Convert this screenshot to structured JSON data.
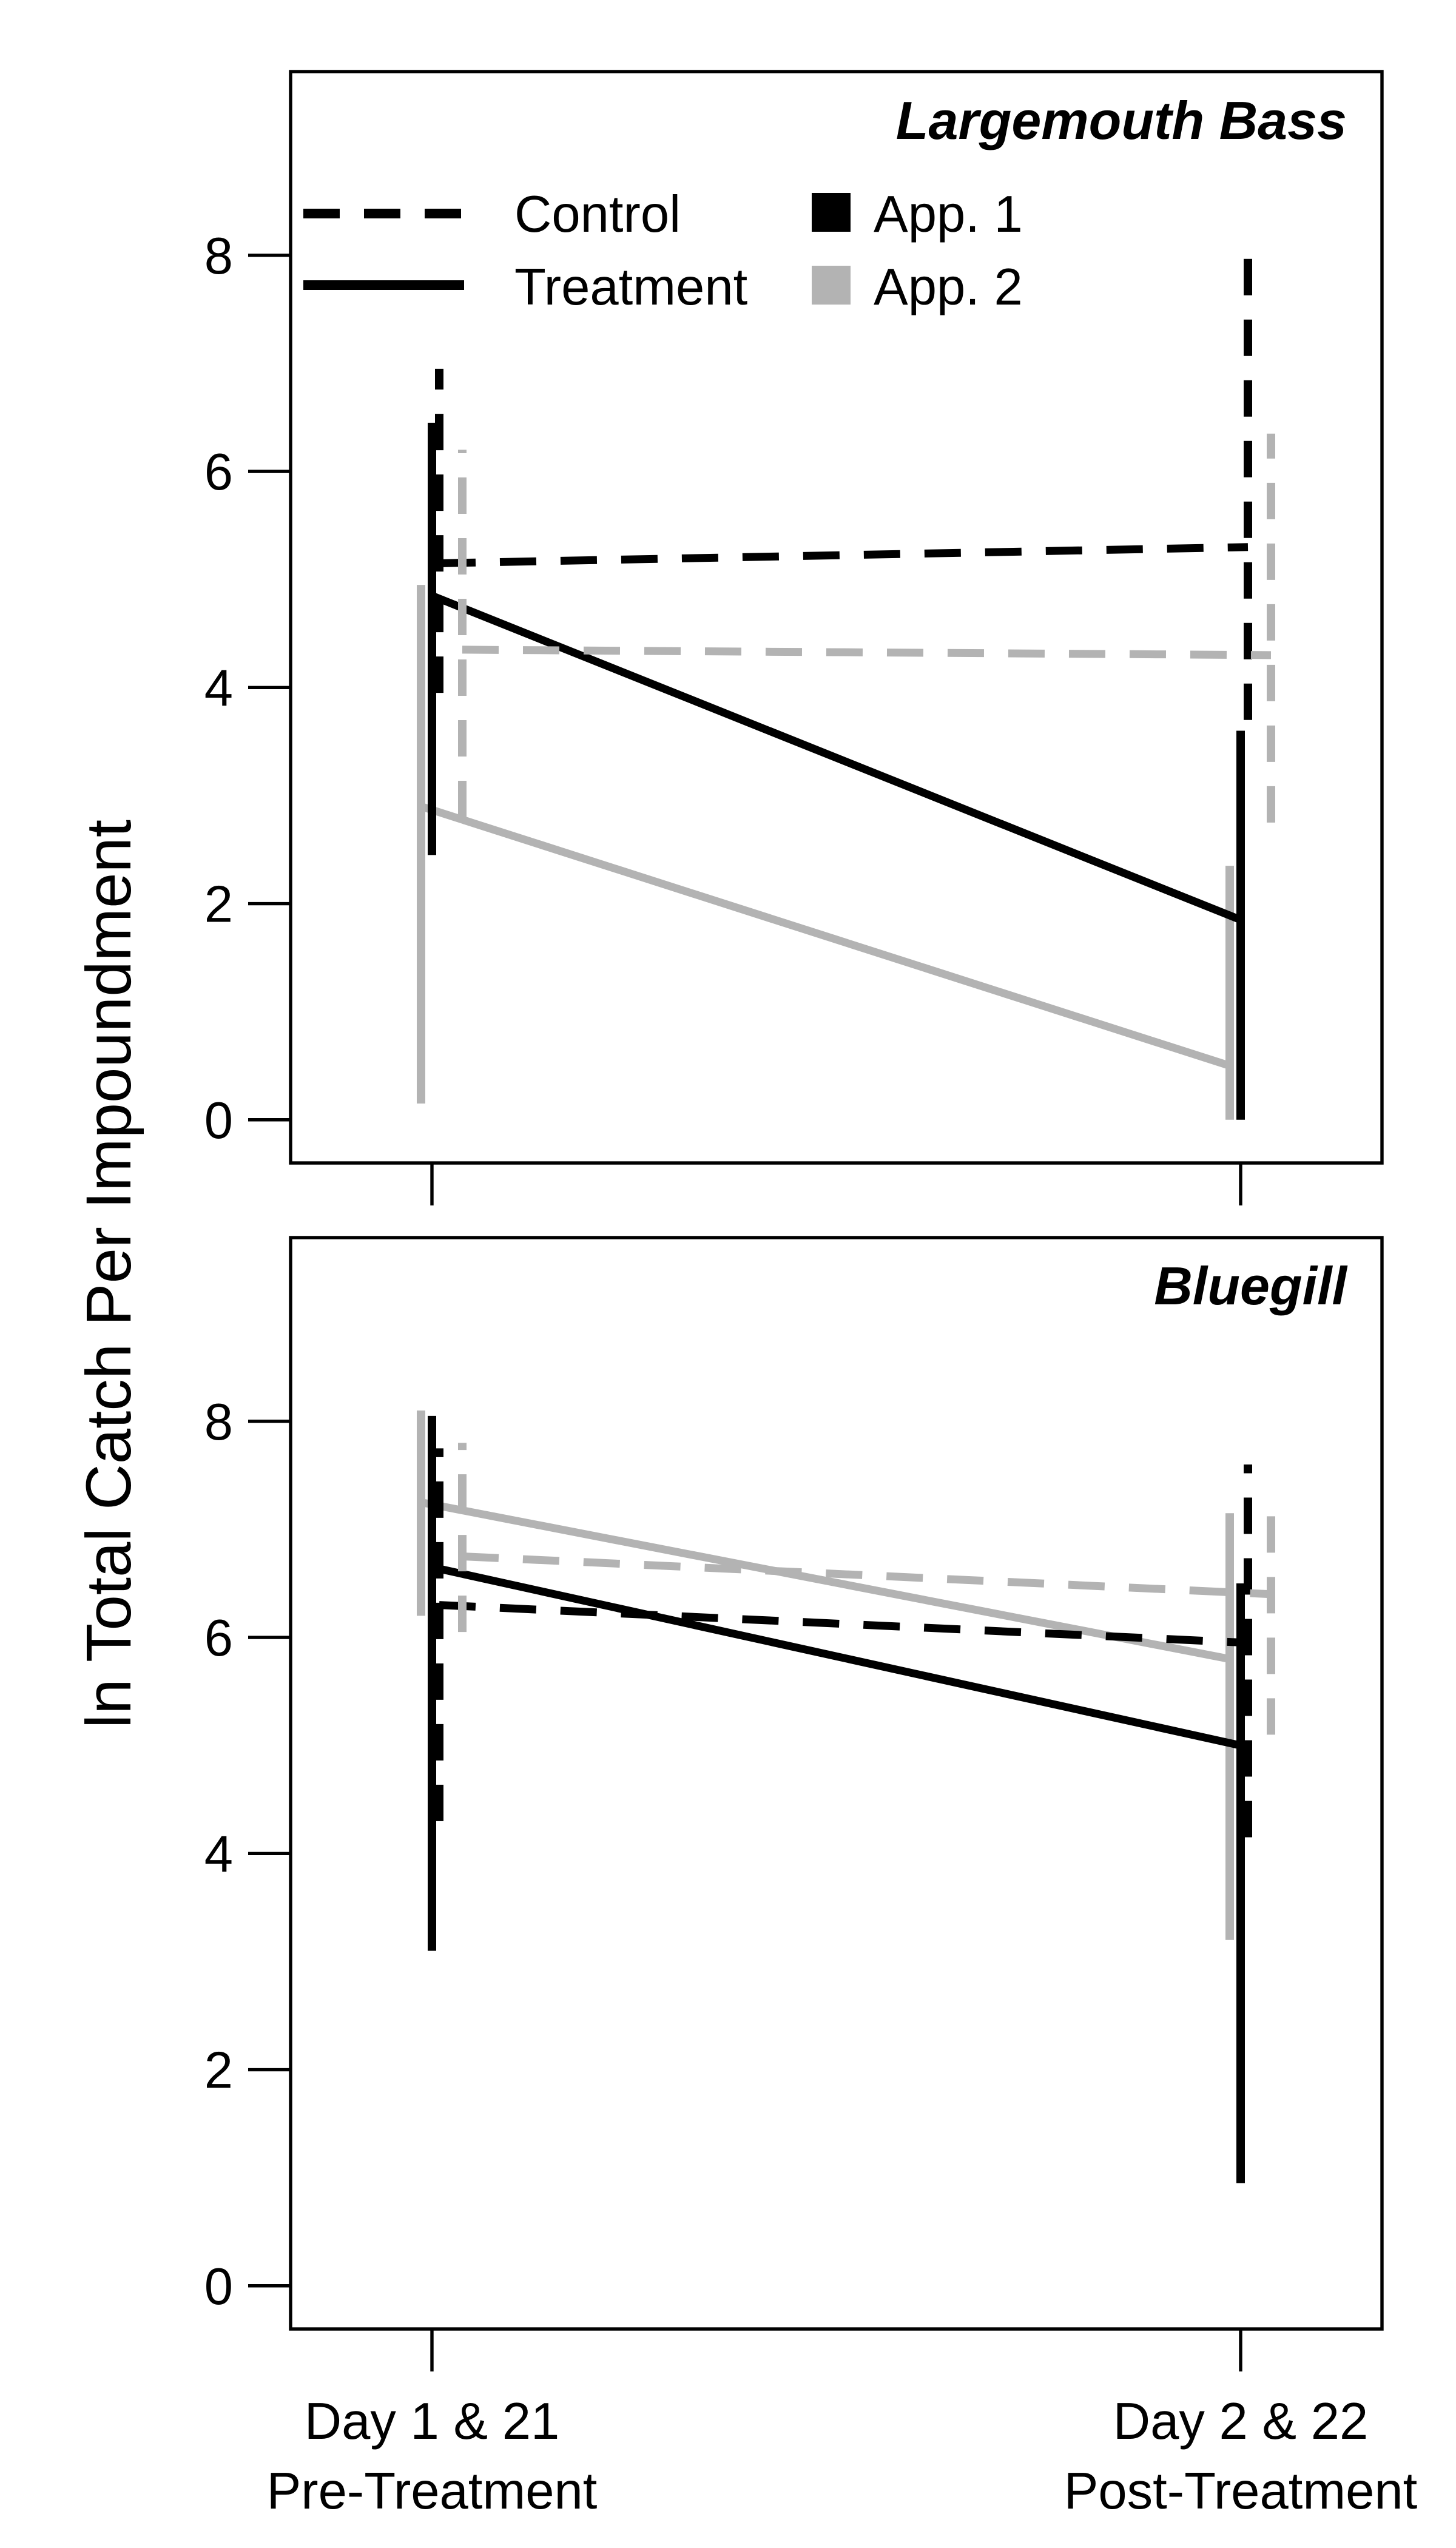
{
  "chart_data": {
    "type": "line",
    "ylabel": "ln Total Catch Per Impoundment",
    "categories": [
      {
        "line1": "Day 1 & 21",
        "line2": "Pre-Treatment"
      },
      {
        "line1": "Day 2 & 22",
        "line2": "Post-Treatment"
      }
    ],
    "ylim": [
      -0.4,
      9.7
    ],
    "yticks": [
      0,
      2,
      4,
      6,
      8
    ],
    "legend": {
      "placement": "top-left",
      "line_types": [
        {
          "label": "Control",
          "style": "dashed"
        },
        {
          "label": "Treatment",
          "style": "solid"
        }
      ],
      "colors": [
        {
          "label": "App. 1",
          "color": "#000000"
        },
        {
          "label": "App. 2",
          "color": "#b3b3b3"
        }
      ]
    },
    "panels": [
      {
        "title": "Largemouth Bass",
        "series": [
          {
            "group": "Treatment",
            "application": "App. 2",
            "style": "solid",
            "color": "#b3b3b3",
            "values": [
              2.9,
              0.5
            ],
            "error_low": [
              0.15,
              0.0
            ],
            "error_high": [
              4.95,
              2.35
            ]
          },
          {
            "group": "Treatment",
            "application": "App. 1",
            "style": "solid",
            "color": "#000000",
            "values": [
              4.85,
              1.85
            ],
            "error_low": [
              2.45,
              0.0
            ],
            "error_high": [
              6.45,
              3.6
            ]
          },
          {
            "group": "Control",
            "application": "App. 1",
            "style": "dashed",
            "color": "#000000",
            "values": [
              5.15,
              5.3
            ],
            "error_low": [
              3.95,
              3.7
            ],
            "error_high": [
              6.95,
              8.1
            ]
          },
          {
            "group": "Control",
            "application": "App. 2",
            "style": "dashed",
            "color": "#b3b3b3",
            "values": [
              4.35,
              4.3
            ],
            "error_low": [
              2.8,
              2.75
            ],
            "error_high": [
              6.2,
              6.35
            ]
          }
        ]
      },
      {
        "title": "Bluegill",
        "series": [
          {
            "group": "Treatment",
            "application": "App. 2",
            "style": "solid",
            "color": "#b3b3b3",
            "values": [
              7.25,
              5.8
            ],
            "error_low": [
              6.2,
              3.2
            ],
            "error_high": [
              8.1,
              7.15
            ]
          },
          {
            "group": "Treatment",
            "application": "App. 1",
            "style": "solid",
            "color": "#000000",
            "values": [
              6.65,
              5.0
            ],
            "error_low": [
              3.1,
              0.95
            ],
            "error_high": [
              8.05,
              6.5
            ]
          },
          {
            "group": "Control",
            "application": "App. 1",
            "style": "dashed",
            "color": "#000000",
            "values": [
              6.3,
              5.95
            ],
            "error_low": [
              4.3,
              4.15
            ],
            "error_high": [
              7.75,
              7.6
            ]
          },
          {
            "group": "Control",
            "application": "App. 2",
            "style": "dashed",
            "color": "#b3b3b3",
            "values": [
              6.75,
              6.4
            ],
            "error_low": [
              6.05,
              5.1
            ],
            "error_high": [
              7.8,
              7.2
            ]
          }
        ]
      }
    ]
  }
}
